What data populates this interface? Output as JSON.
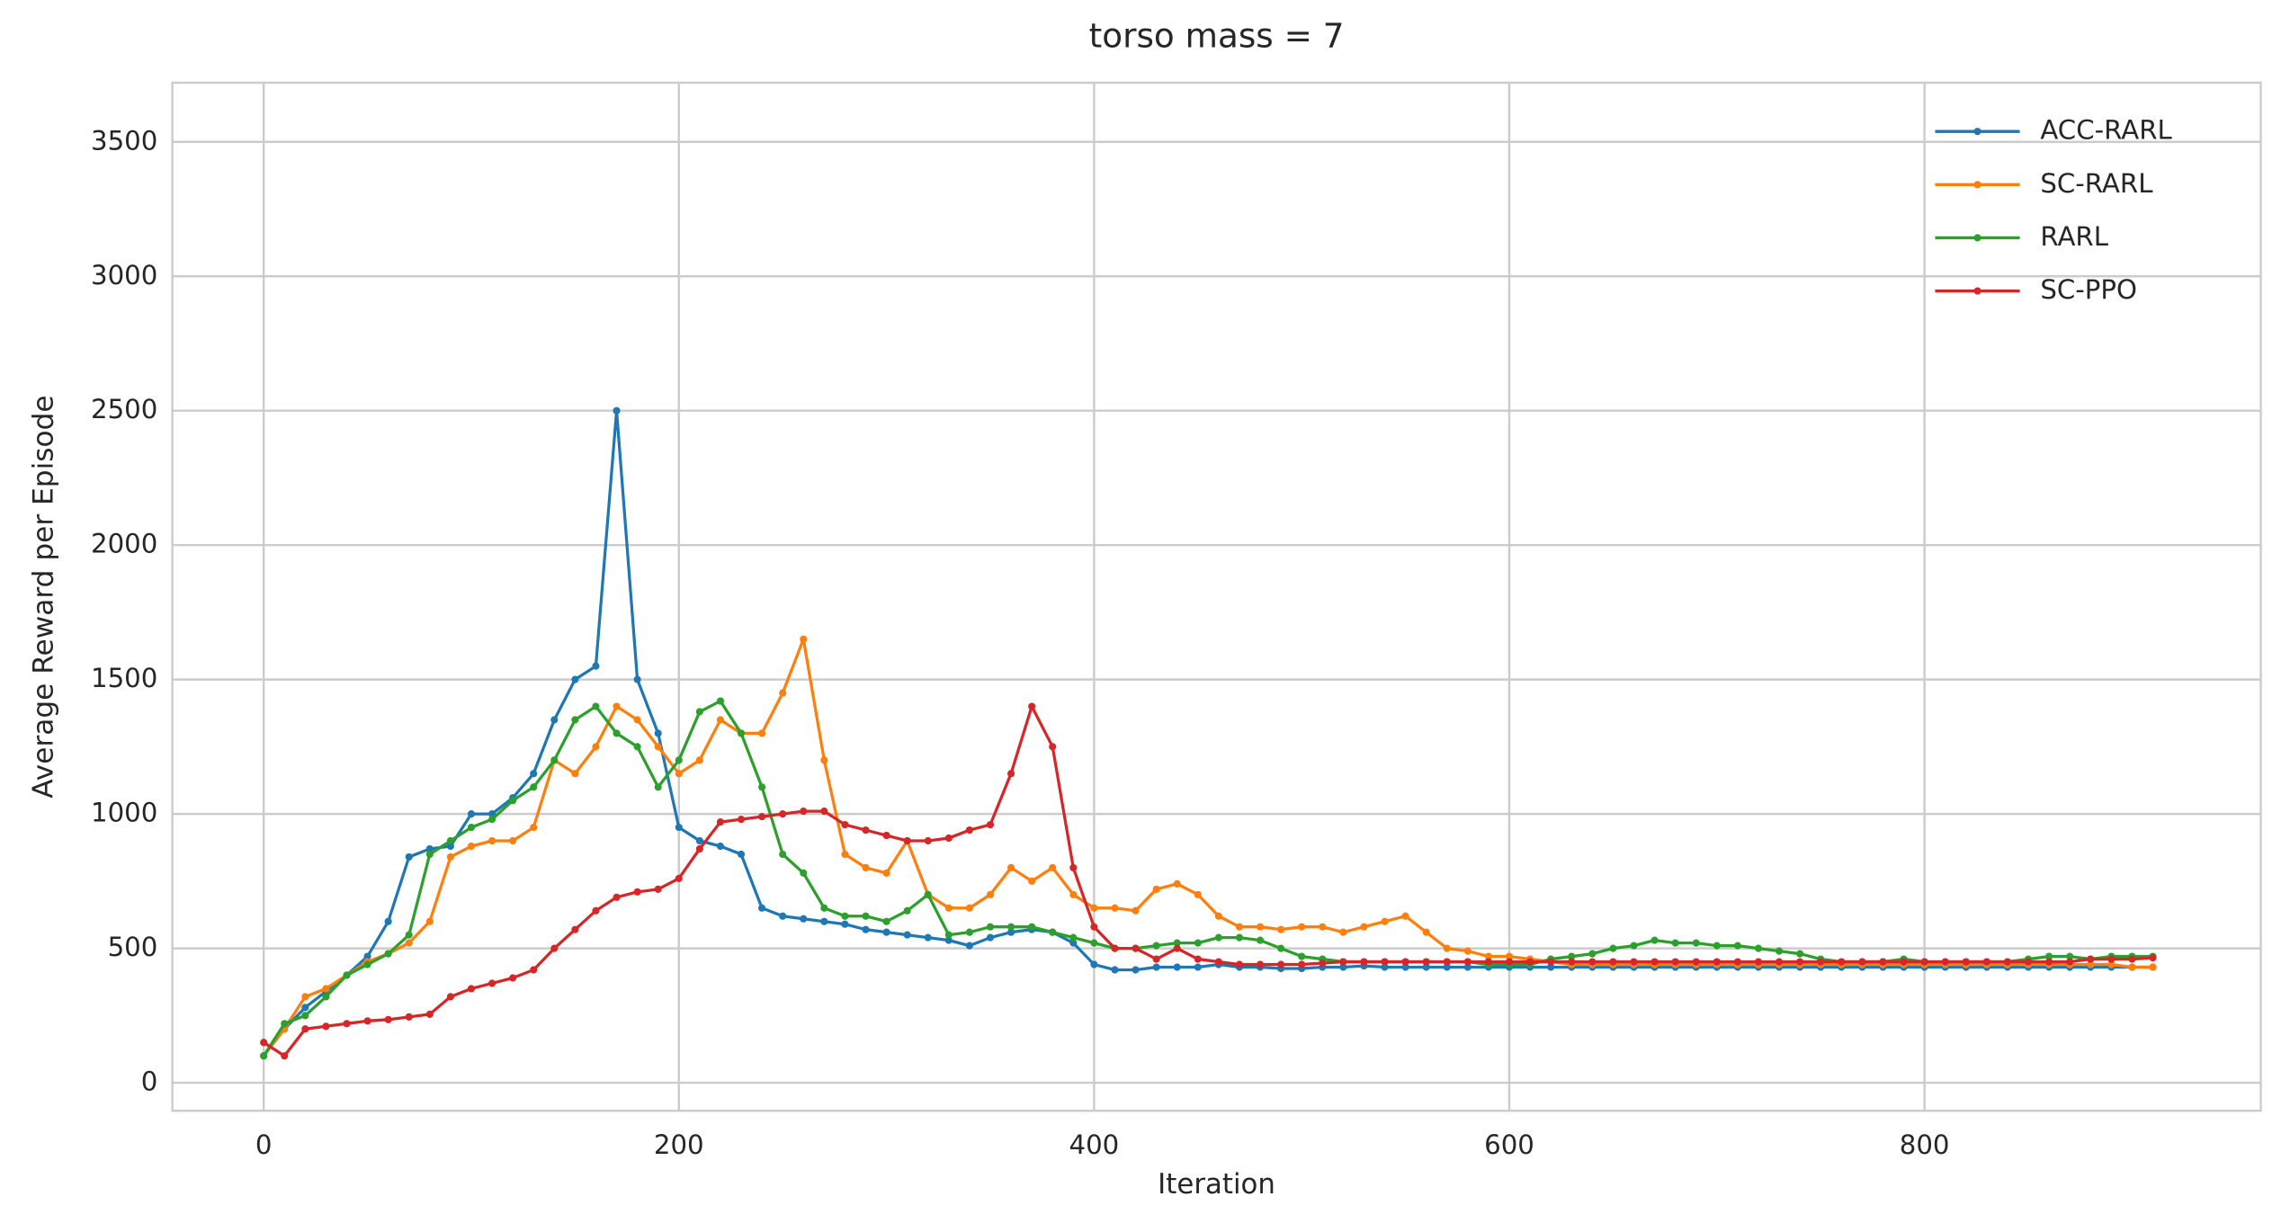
{
  "chart_data": {
    "type": "line",
    "title": "torso mass = 7",
    "x_label": "Iteration",
    "y_label": "Average Reward per Episode",
    "x": [
      0,
      10,
      20,
      30,
      40,
      50,
      60,
      70,
      80,
      90,
      100,
      110,
      120,
      130,
      140,
      150,
      160,
      170,
      180,
      190,
      200,
      210,
      220,
      230,
      240,
      250,
      260,
      270,
      280,
      290,
      300,
      310,
      320,
      330,
      340,
      350,
      360,
      370,
      380,
      390,
      400,
      410,
      420,
      430,
      440,
      450,
      460,
      470,
      480,
      490,
      500,
      510,
      520,
      530,
      540,
      550,
      560,
      570,
      580,
      590,
      600,
      610,
      620,
      630,
      640,
      650,
      660,
      670,
      680,
      690,
      700,
      710,
      720,
      730,
      740,
      750,
      760,
      770,
      780,
      790,
      800,
      810,
      820,
      830,
      840,
      850,
      860,
      870,
      880,
      890,
      900,
      910
    ],
    "series": [
      {
        "name": "ACC-RARL",
        "color": "#1f77b4",
        "values": [
          100,
          200,
          280,
          340,
          400,
          470,
          600,
          840,
          870,
          880,
          1000,
          1000,
          1060,
          1150,
          1350,
          1500,
          1550,
          2500,
          1500,
          1300,
          950,
          900,
          880,
          850,
          650,
          620,
          610,
          600,
          590,
          570,
          560,
          550,
          540,
          530,
          510,
          540,
          560,
          570,
          560,
          520,
          440,
          420,
          420,
          430,
          430,
          430,
          440,
          430,
          430,
          425,
          425,
          430,
          430,
          435,
          430,
          430,
          430,
          430,
          430,
          430,
          430,
          430,
          430,
          430,
          430,
          430,
          430,
          430,
          430,
          430,
          430,
          430,
          430,
          430,
          430,
          430,
          430,
          430,
          430,
          430,
          430,
          430,
          430,
          430,
          430,
          430,
          430,
          430,
          430,
          430,
          430,
          430
        ]
      },
      {
        "name": "SC-RARL",
        "color": "#ff7f0e",
        "values": [
          100,
          200,
          320,
          350,
          400,
          450,
          480,
          520,
          600,
          840,
          880,
          900,
          900,
          950,
          1200,
          1150,
          1250,
          1400,
          1350,
          1250,
          1150,
          1200,
          1350,
          1300,
          1300,
          1450,
          1650,
          1200,
          850,
          800,
          780,
          900,
          700,
          650,
          650,
          700,
          800,
          750,
          800,
          700,
          650,
          650,
          640,
          720,
          740,
          700,
          620,
          580,
          580,
          570,
          580,
          580,
          560,
          580,
          600,
          620,
          560,
          500,
          490,
          470,
          470,
          460,
          450,
          440,
          440,
          440,
          440,
          440,
          440,
          440,
          440,
          440,
          440,
          440,
          440,
          440,
          440,
          440,
          440,
          440,
          440,
          440,
          440,
          440,
          440,
          440,
          440,
          440,
          440,
          440,
          430,
          430
        ]
      },
      {
        "name": "RARL",
        "color": "#2ca02c",
        "values": [
          100,
          220,
          250,
          320,
          400,
          440,
          480,
          550,
          850,
          900,
          950,
          980,
          1050,
          1100,
          1200,
          1350,
          1400,
          1300,
          1250,
          1100,
          1200,
          1380,
          1420,
          1300,
          1100,
          850,
          780,
          650,
          620,
          620,
          600,
          640,
          700,
          550,
          560,
          580,
          580,
          580,
          560,
          540,
          520,
          500,
          500,
          510,
          520,
          520,
          540,
          540,
          530,
          500,
          470,
          460,
          450,
          450,
          450,
          450,
          450,
          450,
          450,
          440,
          440,
          440,
          460,
          470,
          480,
          500,
          510,
          530,
          520,
          520,
          510,
          510,
          500,
          490,
          480,
          460,
          450,
          450,
          450,
          460,
          450,
          450,
          450,
          450,
          450,
          460,
          470,
          470,
          460,
          470,
          470,
          470
        ]
      },
      {
        "name": "SC-PPO",
        "color": "#d62728",
        "values": [
          150,
          100,
          200,
          210,
          220,
          230,
          235,
          245,
          255,
          320,
          350,
          370,
          390,
          420,
          500,
          570,
          640,
          690,
          710,
          720,
          760,
          870,
          970,
          980,
          990,
          1000,
          1010,
          1010,
          960,
          940,
          920,
          900,
          900,
          910,
          940,
          960,
          1150,
          1400,
          1250,
          800,
          580,
          500,
          500,
          460,
          500,
          460,
          450,
          440,
          440,
          440,
          440,
          445,
          450,
          450,
          450,
          450,
          450,
          450,
          450,
          450,
          450,
          450,
          450,
          450,
          450,
          450,
          450,
          450,
          450,
          450,
          450,
          450,
          450,
          450,
          450,
          450,
          450,
          450,
          450,
          450,
          450,
          450,
          450,
          450,
          450,
          450,
          450,
          450,
          460,
          460,
          460,
          465
        ]
      }
    ],
    "xlim": [
      -44,
      962
    ],
    "ylim": [
      -104,
      3720
    ],
    "xticks": [
      0,
      200,
      400,
      600,
      800
    ],
    "yticks": [
      0,
      500,
      1000,
      1500,
      2000,
      2500,
      3000,
      3500
    ],
    "grid": true,
    "legend": "upper right"
  }
}
